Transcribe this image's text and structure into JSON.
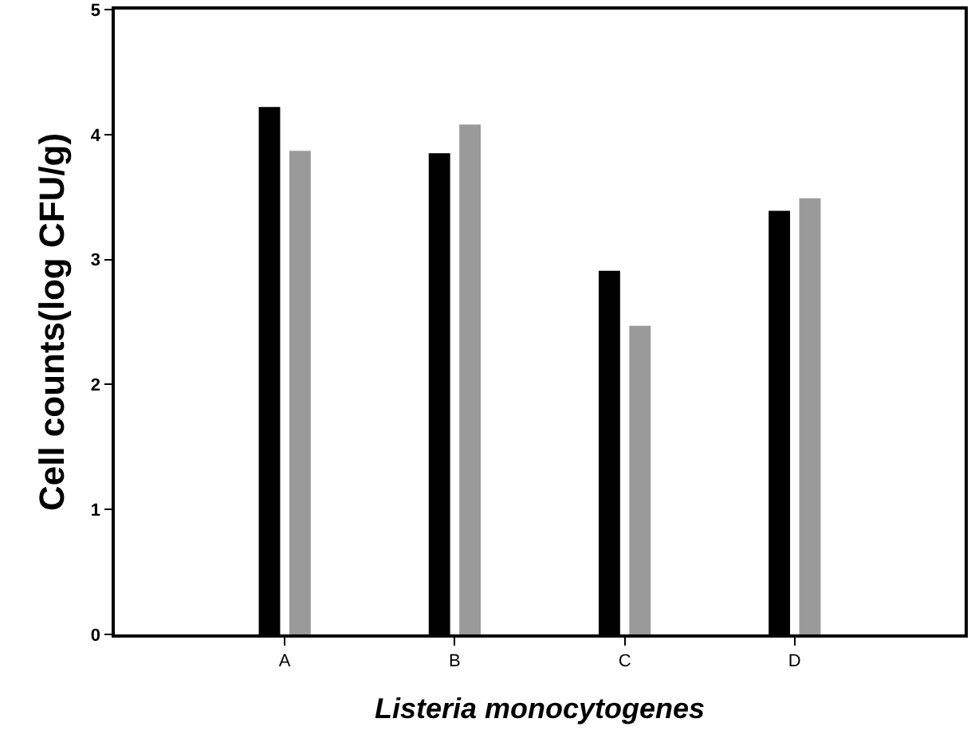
{
  "chart_data": {
    "type": "bar",
    "xlabel": "Listeria monocytogenes",
    "ylabel": "Cell counts(log CFU/g)",
    "categories": [
      "A",
      "B",
      "C",
      "D"
    ],
    "series": [
      {
        "color": "#000000",
        "values": [
          4.22,
          3.85,
          2.91,
          3.39
        ]
      },
      {
        "color": "#9a9a9a",
        "values": [
          3.87,
          4.08,
          2.47,
          3.49
        ]
      }
    ],
    "ylim": [
      0,
      5
    ],
    "yticks": [
      0,
      1,
      2,
      3,
      4,
      5
    ],
    "grid": false
  }
}
